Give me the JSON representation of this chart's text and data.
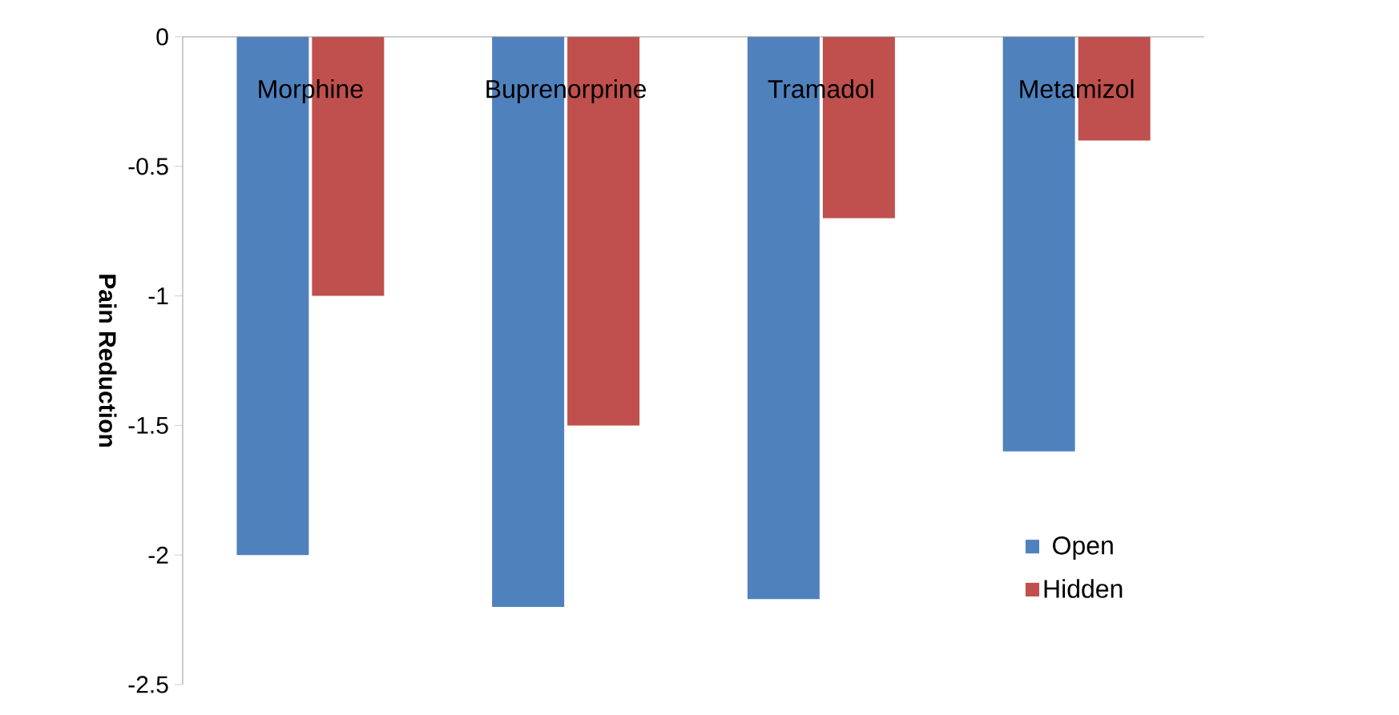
{
  "chart_data": {
    "type": "bar",
    "ylabel": "Pain Reduction",
    "categories": [
      "Morphine",
      "Buprenorprine",
      "Tramadol",
      "Metamizol"
    ],
    "series": [
      {
        "name": "Open",
        "color": "#4f81bd",
        "values": [
          -2.0,
          -2.2,
          -2.17,
          -1.6
        ]
      },
      {
        "name": "Hidden",
        "color": "#c0504d",
        "values": [
          -1.0,
          -1.5,
          -0.7,
          -0.4
        ]
      }
    ],
    "ylim": [
      -2.5,
      0
    ],
    "yticks": [
      0,
      -0.5,
      -1,
      -1.5,
      -2,
      -2.5
    ],
    "grid": false,
    "legend": "bottom right"
  }
}
